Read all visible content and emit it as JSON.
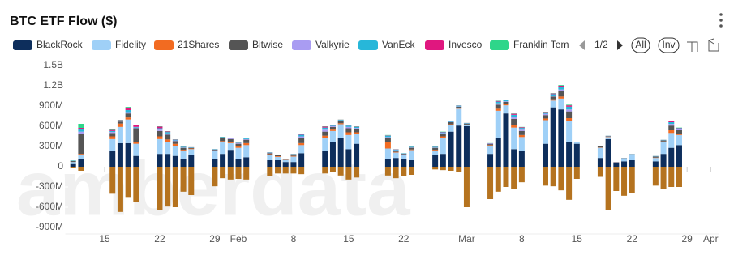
{
  "chart_data": {
    "type": "stacked-bar",
    "title": "BTC ETF Flow ($)",
    "watermark": "amberdata",
    "legend_controls": {
      "page": "1/2",
      "all": "All",
      "invert": "Inv"
    },
    "x": [
      11,
      12,
      16,
      17,
      18,
      19,
      22,
      23,
      24,
      25,
      26,
      29,
      30,
      31,
      32,
      33,
      36,
      37,
      38,
      39,
      40,
      43,
      44,
      45,
      46,
      47,
      51,
      52,
      53,
      54,
      57,
      58,
      59,
      60,
      61,
      64,
      65,
      66,
      67,
      68,
      71,
      72,
      73,
      74,
      75,
      78,
      79,
      80,
      81,
      82,
      85,
      86,
      87,
      88
    ],
    "xlim": [
      10,
      93
    ],
    "xticks": [
      {
        "value": 15,
        "label": "15"
      },
      {
        "value": 22,
        "label": "22"
      },
      {
        "value": 29,
        "label": "29"
      },
      {
        "value": 32,
        "label": "Feb"
      },
      {
        "value": 39,
        "label": "8"
      },
      {
        "value": 46,
        "label": "15"
      },
      {
        "value": 53,
        "label": "22"
      },
      {
        "value": 61,
        "label": "Mar"
      },
      {
        "value": 68,
        "label": "8"
      },
      {
        "value": 75,
        "label": "15"
      },
      {
        "value": 82,
        "label": "22"
      },
      {
        "value": 89,
        "label": "29"
      },
      {
        "value": 92,
        "label": "Apr"
      }
    ],
    "ylim": [
      -900,
      1500
    ],
    "yticks": [
      {
        "value": 1500,
        "label": "1.5B"
      },
      {
        "value": 1200,
        "label": "1.2B"
      },
      {
        "value": 900,
        "label": "900M"
      },
      {
        "value": 600,
        "label": "600M"
      },
      {
        "value": 300,
        "label": "300M"
      },
      0,
      {
        "value": -300,
        "label": "-300M"
      },
      {
        "value": -600,
        "label": "-600M"
      },
      {
        "value": -900,
        "label": "-900M"
      }
    ],
    "series": [
      {
        "name": "BlackRock",
        "color": "#0d2e5c",
        "values": [
          40,
          120,
          240,
          350,
          350,
          160,
          190,
          190,
          160,
          110,
          170,
          120,
          190,
          250,
          120,
          140,
          96,
          96,
          70,
          70,
          200,
          240,
          370,
          430,
          260,
          340,
          120,
          130,
          120,
          96,
          170,
          190,
          520,
          610,
          600,
          190,
          430,
          790,
          260,
          240,
          340,
          880,
          850,
          360,
          340,
          130,
          410,
          50,
          80,
          96,
          80,
          190,
          280,
          320
        ]
      },
      {
        "name": "Fidelity",
        "color": "#9fd0f7",
        "values": [
          30,
          50,
          170,
          240,
          350,
          180,
          220,
          174,
          150,
          120,
          90,
          110,
          170,
          100,
          160,
          180,
          80,
          50,
          30,
          80,
          120,
          180,
          160,
          200,
          210,
          150,
          150,
          80,
          50,
          150,
          60,
          240,
          100,
          250,
          20,
          120,
          400,
          120,
          320,
          200,
          350,
          100,
          160,
          320,
          20,
          150,
          30,
          10,
          30,
          90,
          50,
          180,
          220,
          150
        ]
      },
      {
        "name": "21Shares",
        "color": "#f26b21",
        "values": [
          0,
          20,
          40,
          50,
          30,
          30,
          40,
          40,
          30,
          20,
          10,
          10,
          20,
          20,
          20,
          30,
          10,
          10,
          5,
          10,
          30,
          40,
          20,
          15,
          40,
          20,
          100,
          10,
          10,
          10,
          20,
          20,
          10,
          10,
          5,
          10,
          30,
          15,
          40,
          30,
          25,
          20,
          30,
          40,
          2,
          5,
          5,
          2,
          5,
          1,
          5,
          5,
          40,
          20
        ]
      },
      {
        "name": "Bitwise",
        "color": "#555555",
        "values": [
          15,
          300,
          50,
          30,
          60,
          200,
          80,
          70,
          40,
          30,
          10,
          10,
          40,
          40,
          40,
          50,
          15,
          12,
          8,
          15,
          70,
          60,
          40,
          30,
          60,
          50,
          50,
          20,
          10,
          25,
          30,
          40,
          30,
          20,
          15,
          15,
          60,
          35,
          90,
          60,
          50,
          40,
          80,
          100,
          4,
          15,
          8,
          4,
          8,
          2,
          15,
          15,
          70,
          50
        ]
      },
      {
        "name": "Valkyrie",
        "color": "#a99cf2",
        "values": [
          3,
          30,
          15,
          6,
          20,
          10,
          20,
          20,
          10,
          5,
          3,
          5,
          10,
          10,
          10,
          10,
          5,
          4,
          3,
          5,
          30,
          30,
          10,
          10,
          20,
          15,
          20,
          5,
          3,
          5,
          5,
          10,
          5,
          5,
          3,
          5,
          20,
          10,
          30,
          20,
          20,
          15,
          25,
          30,
          1,
          3,
          2,
          1,
          2,
          0,
          3,
          3,
          25,
          15
        ]
      },
      {
        "name": "VanEck",
        "color": "#27b7d9",
        "values": [
          5,
          40,
          15,
          10,
          30,
          10,
          20,
          20,
          10,
          10,
          5,
          5,
          8,
          7,
          5,
          15,
          5,
          4,
          2,
          5,
          25,
          30,
          10,
          10,
          20,
          15,
          20,
          10,
          5,
          10,
          10,
          10,
          10,
          10,
          5,
          5,
          25,
          15,
          30,
          25,
          20,
          20,
          40,
          40,
          2,
          5,
          3,
          2,
          3,
          1,
          5,
          5,
          25,
          15
        ]
      },
      {
        "name": "Invesco",
        "color": "#e0177f",
        "values": [
          0,
          16,
          15,
          5,
          38,
          30,
          25,
          10,
          5,
          3,
          1,
          2,
          3,
          3,
          3,
          5,
          3,
          2,
          1,
          3,
          10,
          15,
          5,
          3,
          5,
          5,
          5,
          3,
          1,
          2,
          3,
          5,
          3,
          3,
          1,
          3,
          10,
          3,
          15,
          10,
          6,
          10,
          15,
          20,
          1,
          1,
          1,
          1,
          1,
          0,
          1,
          1,
          15,
          5
        ]
      },
      {
        "name": "Franklin Tem",
        "color": "#2ed68a",
        "values": [
          3,
          60,
          7,
          5,
          10,
          4,
          5,
          4,
          3,
          2,
          1,
          2,
          3,
          2,
          2,
          2,
          2,
          2,
          1,
          2,
          5,
          5,
          5,
          2,
          5,
          5,
          5,
          2,
          1,
          2,
          2,
          5,
          2,
          2,
          1,
          2,
          5,
          2,
          5,
          5,
          5,
          5,
          10,
          10,
          0,
          1,
          1,
          0,
          1,
          0,
          1,
          1,
          5,
          5
        ]
      },
      {
        "color": "#b5731f",
        "values": [
          -24,
          -60,
          -400,
          -670,
          -460,
          -520,
          -640,
          -590,
          -600,
          -370,
          -420,
          -290,
          -170,
          -190,
          -180,
          -190,
          -140,
          -100,
          -100,
          -100,
          -110,
          -100,
          -80,
          -130,
          -190,
          -160,
          -130,
          -170,
          -140,
          -120,
          -40,
          -50,
          -60,
          -80,
          -600,
          -480,
          -370,
          -300,
          -330,
          -230,
          -280,
          -290,
          -350,
          -490,
          -180,
          -150,
          -640,
          -360,
          -430,
          -390,
          -280,
          -330,
          -300,
          -300
        ]
      }
    ]
  }
}
